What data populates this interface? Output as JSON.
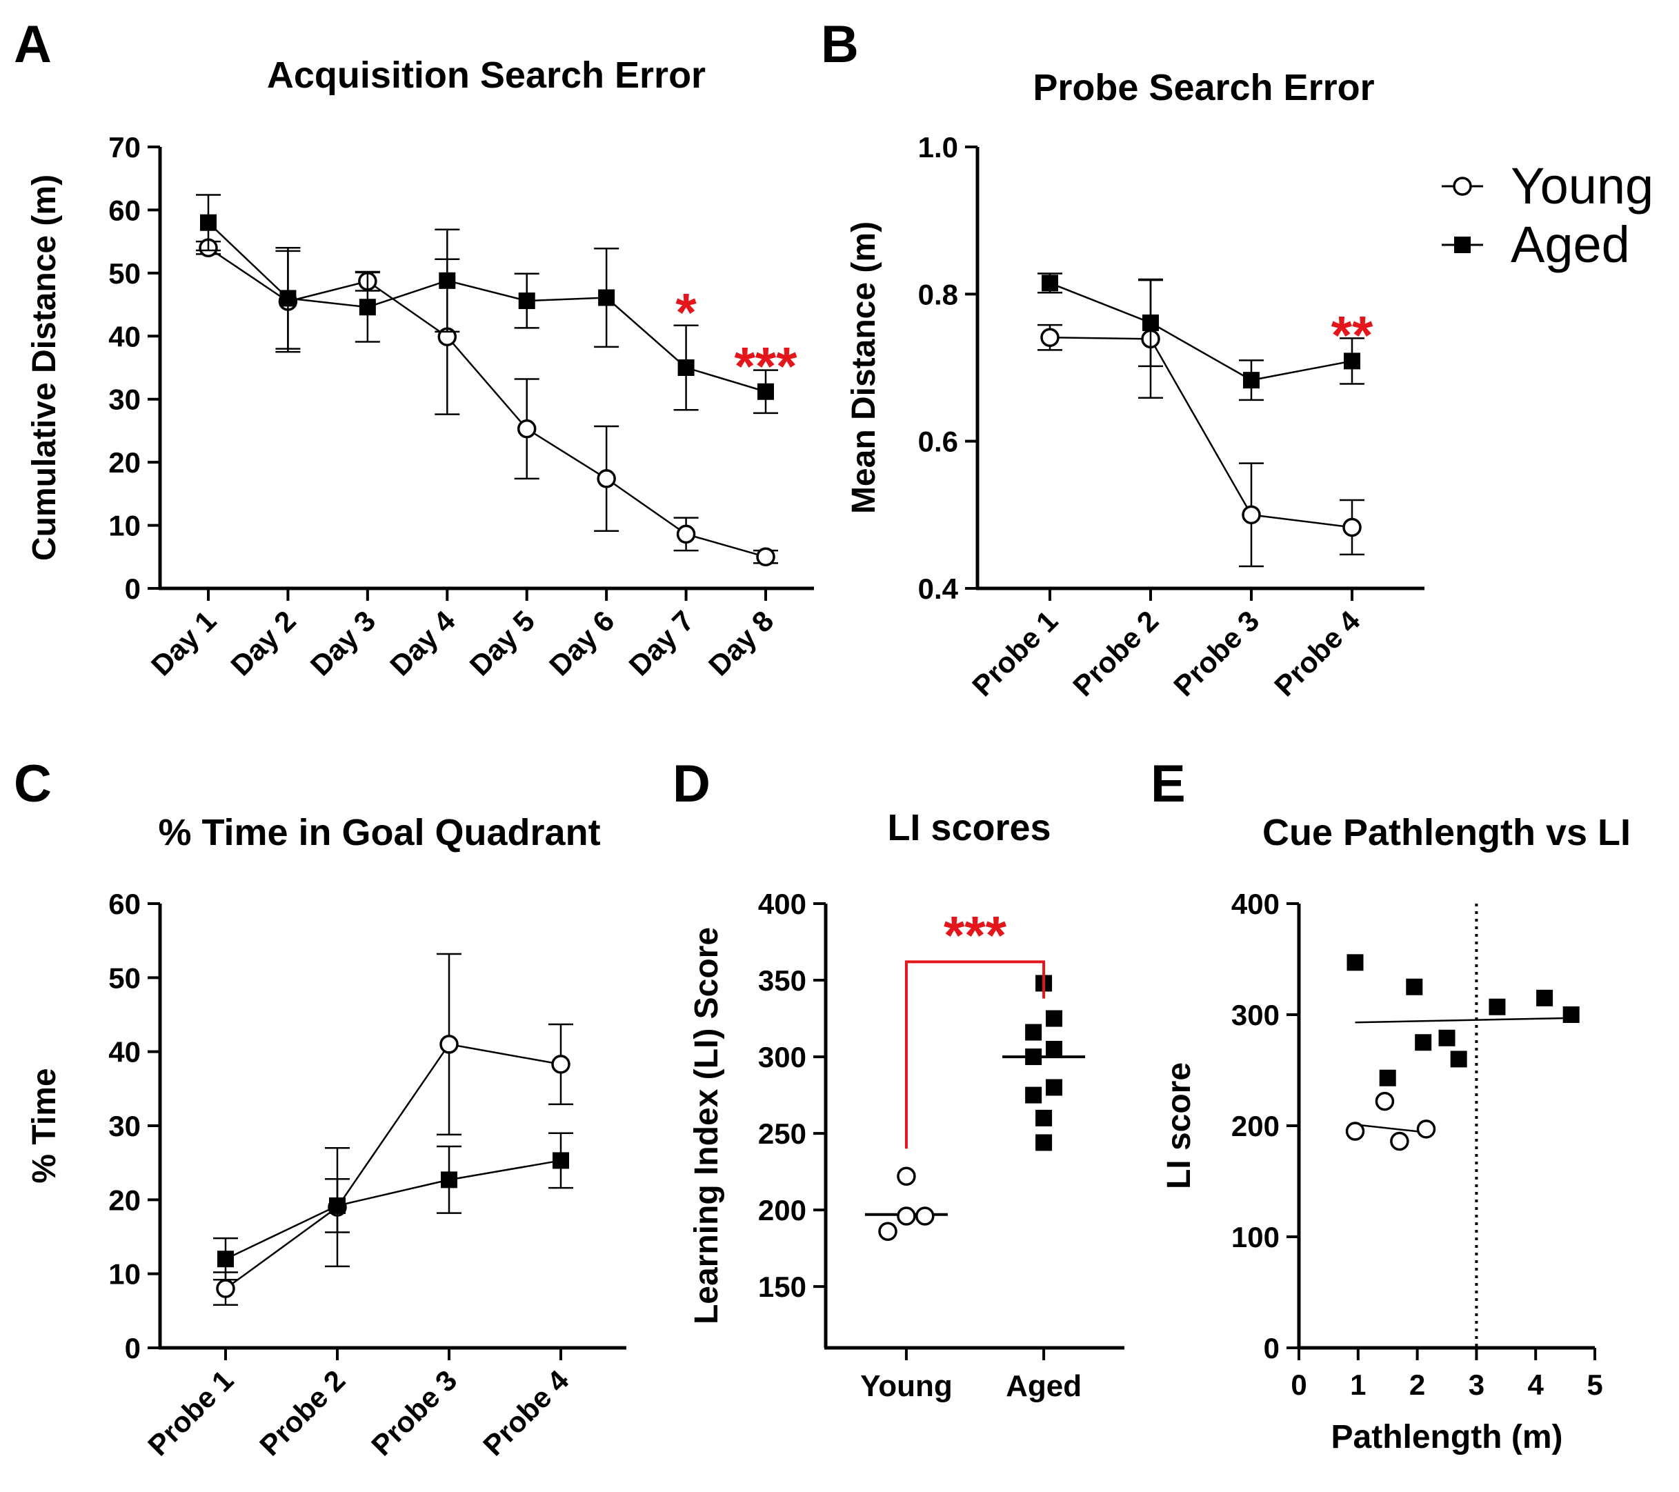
{
  "chart_data": [
    {
      "panel_letter": "A",
      "type": "line",
      "title": "Acquisition Search Error",
      "ylabel": "Cumulative Distance (m)",
      "xlabel": "",
      "categories": [
        "Day 1",
        "Day 2",
        "Day 3",
        "Day 4",
        "Day 5",
        "Day 6",
        "Day 7",
        "Day 8"
      ],
      "ylim": [
        0,
        70
      ],
      "yticks": [
        0,
        10,
        20,
        30,
        40,
        50,
        60,
        70
      ],
      "grid": false,
      "series": [
        {
          "name": "Young",
          "marker": "open-circle",
          "values": [
            54,
            45.5,
            48.7,
            39.9,
            25.3,
            17.4,
            8.6,
            5.0
          ],
          "errors": [
            1.0,
            8.0,
            1.5,
            12.3,
            7.9,
            8.3,
            2.6,
            1.0
          ]
        },
        {
          "name": "Aged",
          "marker": "filled-square",
          "values": [
            58,
            46,
            44.6,
            48.8,
            45.6,
            46.1,
            35.0,
            31.2
          ],
          "errors": [
            4.4,
            8.0,
            5.5,
            8.1,
            4.3,
            7.8,
            6.7,
            3.4
          ]
        }
      ],
      "annotations": [
        {
          "text": "*",
          "category": "Day 7",
          "y": 45,
          "color": "#e3161c"
        },
        {
          "text": "***",
          "category": "Day 8",
          "y": 36.5,
          "color": "#e3161c"
        }
      ]
    },
    {
      "panel_letter": "B",
      "type": "line",
      "title": "Probe Search Error",
      "ylabel": "Mean Distance (m)",
      "xlabel": "",
      "categories": [
        "Probe 1",
        "Probe 2",
        "Probe 3",
        "Probe 4"
      ],
      "ylim": [
        0.4,
        1.0
      ],
      "yticks": [
        0.4,
        0.6,
        0.8,
        1.0
      ],
      "ytick_labels": [
        "0.4",
        "0.6",
        "0.8",
        "1.0"
      ],
      "grid": false,
      "series": [
        {
          "name": "Young",
          "marker": "open-circle",
          "values": [
            0.741,
            0.739,
            0.5,
            0.483
          ],
          "errors": [
            0.017,
            0.08,
            0.07,
            0.037
          ]
        },
        {
          "name": "Aged",
          "marker": "filled-square",
          "values": [
            0.815,
            0.761,
            0.683,
            0.709
          ],
          "errors": [
            0.013,
            0.059,
            0.027,
            0.031
          ]
        }
      ],
      "annotations": [
        {
          "text": "**",
          "category": "Probe 4",
          "y": 0.755,
          "color": "#e3161c"
        }
      ],
      "legend": {
        "position": "top-right",
        "items": [
          {
            "label": "Young",
            "marker": "open-circle"
          },
          {
            "label": "Aged",
            "marker": "filled-square"
          }
        ]
      }
    },
    {
      "panel_letter": "C",
      "type": "line",
      "title": "% Time in Goal Quadrant",
      "ylabel": "% Time",
      "xlabel": "",
      "categories": [
        "Probe 1",
        "Probe 2",
        "Probe 3",
        "Probe 4"
      ],
      "ylim": [
        0,
        60
      ],
      "yticks": [
        0,
        10,
        20,
        30,
        40,
        50,
        60
      ],
      "grid": false,
      "series": [
        {
          "name": "Young",
          "marker": "open-circle",
          "values": [
            8.0,
            19.0,
            41.0,
            38.3
          ],
          "errors": [
            2.2,
            8.0,
            12.2,
            5.4
          ]
        },
        {
          "name": "Aged",
          "marker": "filled-square",
          "values": [
            12.0,
            19.2,
            22.7,
            25.3
          ],
          "errors": [
            2.8,
            3.6,
            4.5,
            3.7
          ]
        }
      ]
    },
    {
      "panel_letter": "D",
      "type": "scatter",
      "title": "LI scores",
      "ylabel": "Learning Index (LI) Score",
      "xlabel": "",
      "categories": [
        "Young",
        "Aged"
      ],
      "ylim": [
        110,
        400
      ],
      "yticks": [
        150,
        200,
        250,
        300,
        350,
        400
      ],
      "grid": false,
      "groups": [
        {
          "name": "Young",
          "marker": "open-circle",
          "mean": 197,
          "points": [
            {
              "dx": 0,
              "y": 222
            },
            {
              "dx": -0.27,
              "y": 186
            },
            {
              "dx": 0,
              "y": 196
            },
            {
              "dx": 0.27,
              "y": 196
            }
          ]
        },
        {
          "name": "Aged",
          "marker": "filled-square",
          "mean": 300,
          "points": [
            {
              "dx": 0,
              "y": 348
            },
            {
              "dx": -0.15,
              "y": 316
            },
            {
              "dx": 0.15,
              "y": 325
            },
            {
              "dx": -0.15,
              "y": 300
            },
            {
              "dx": 0.15,
              "y": 305
            },
            {
              "dx": -0.15,
              "y": 275
            },
            {
              "dx": 0.15,
              "y": 280
            },
            {
              "dx": 0,
              "y": 260
            },
            {
              "dx": 0,
              "y": 244
            }
          ]
        }
      ],
      "annotations": [
        {
          "text": "***",
          "type": "bracket",
          "from": "Young",
          "to": "Aged",
          "y": 362,
          "left_drop": 240,
          "right_drop": 338,
          "color": "#e3161c"
        }
      ]
    },
    {
      "panel_letter": "E",
      "type": "scatter",
      "title": "Cue Pathlength vs LI",
      "xlabel": "Pathlength (m)",
      "ylabel": "LI score",
      "xlim": [
        0,
        5
      ],
      "ylim": [
        0,
        400
      ],
      "xticks": [
        0,
        1,
        2,
        3,
        4,
        5
      ],
      "yticks": [
        0,
        100,
        200,
        300,
        400
      ],
      "grid": false,
      "series": [
        {
          "name": "Young",
          "marker": "open-circle",
          "points": [
            [
              0.95,
              195
            ],
            [
              1.45,
              222
            ],
            [
              1.7,
              186
            ],
            [
              2.15,
              197
            ]
          ],
          "fit": [
            [
              0.95,
              201
            ],
            [
              2.15,
              194
            ]
          ]
        },
        {
          "name": "Aged",
          "marker": "filled-square",
          "points": [
            [
              0.95,
              347
            ],
            [
              1.5,
              243
            ],
            [
              1.95,
              325
            ],
            [
              2.1,
              275
            ],
            [
              2.5,
              279
            ],
            [
              2.7,
              260
            ],
            [
              3.35,
              307
            ],
            [
              4.15,
              315
            ],
            [
              4.6,
              300
            ]
          ],
          "fit": [
            [
              0.95,
              293
            ],
            [
              4.6,
              297
            ]
          ]
        }
      ],
      "reference_line": {
        "x": 3.0,
        "style": "dotted"
      }
    }
  ]
}
